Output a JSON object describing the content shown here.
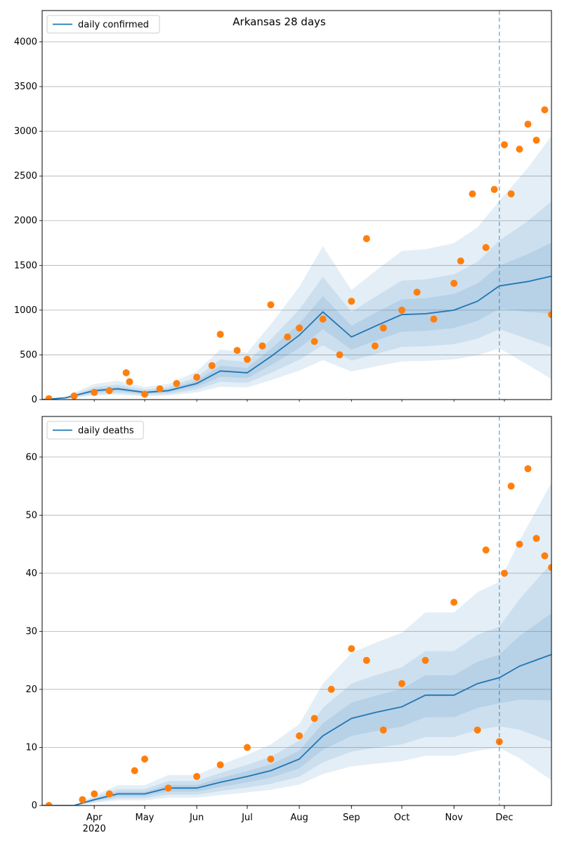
{
  "chart_data": [
    {
      "type": "line",
      "title": "Arkansas 28 days",
      "xlabel": "",
      "ylabel": "",
      "x_range": [
        "2020-03-01",
        "2020-12-29"
      ],
      "ylim": [
        0,
        4350
      ],
      "yticks": [
        0,
        500,
        1000,
        1500,
        2000,
        2500,
        3000,
        3500,
        4000
      ],
      "grid": "horizontal",
      "legend_position": "top-left",
      "forecast_start": "2020-11-28",
      "colors": {
        "line": "#1f77b4",
        "points": "#ff7f0e",
        "band": "#1f77b4"
      },
      "series": [
        {
          "name": "daily confirmed",
          "type": "line",
          "x": [
            "2020-03-01",
            "2020-03-15",
            "2020-04-01",
            "2020-04-15",
            "2020-05-01",
            "2020-05-15",
            "2020-06-01",
            "2020-06-15",
            "2020-07-01",
            "2020-07-15",
            "2020-08-01",
            "2020-08-15",
            "2020-09-01",
            "2020-09-15",
            "2020-10-01",
            "2020-10-15",
            "2020-11-01",
            "2020-11-15",
            "2020-11-28",
            "2020-12-15",
            "2020-12-29"
          ],
          "values": [
            0,
            20,
            100,
            120,
            80,
            100,
            180,
            320,
            300,
            480,
            720,
            980,
            700,
            820,
            950,
            960,
            1000,
            1100,
            1270,
            1320,
            1380
          ]
        },
        {
          "name": "",
          "type": "scatter",
          "x": [
            "2020-03-05",
            "2020-03-20",
            "2020-04-01",
            "2020-04-10",
            "2020-04-20",
            "2020-04-22",
            "2020-05-01",
            "2020-05-10",
            "2020-05-20",
            "2020-06-01",
            "2020-06-10",
            "2020-06-15",
            "2020-06-25",
            "2020-07-01",
            "2020-07-10",
            "2020-07-15",
            "2020-07-25",
            "2020-08-01",
            "2020-08-10",
            "2020-08-15",
            "2020-08-25",
            "2020-09-01",
            "2020-09-10",
            "2020-09-15",
            "2020-09-20",
            "2020-10-01",
            "2020-10-10",
            "2020-10-20",
            "2020-11-01",
            "2020-11-05",
            "2020-11-12",
            "2020-11-20",
            "2020-11-25",
            "2020-12-01",
            "2020-12-05",
            "2020-12-10",
            "2020-12-15",
            "2020-12-20",
            "2020-12-25",
            "2020-12-29"
          ],
          "values": [
            10,
            40,
            80,
            100,
            300,
            200,
            60,
            120,
            180,
            250,
            380,
            730,
            550,
            450,
            600,
            1060,
            700,
            800,
            650,
            900,
            500,
            1100,
            1800,
            600,
            800,
            1000,
            1200,
            900,
            1300,
            1550,
            2300,
            1700,
            2350,
            2850,
            2300,
            2800,
            3080,
            2900,
            3240,
            950
          ]
        }
      ]
    },
    {
      "type": "line",
      "title": "",
      "xlabel": "",
      "ylabel": "",
      "x_range": [
        "2020-03-01",
        "2020-12-29"
      ],
      "xticks": [
        "Apr",
        "May",
        "Jun",
        "Jul",
        "Aug",
        "Sep",
        "Oct",
        "Nov",
        "Dec"
      ],
      "xtick_year": "2020",
      "ylim": [
        0,
        67
      ],
      "yticks": [
        0,
        10,
        20,
        30,
        40,
        50,
        60
      ],
      "grid": "horizontal",
      "legend_position": "top-left",
      "forecast_start": "2020-11-28",
      "colors": {
        "line": "#1f77b4",
        "points": "#ff7f0e",
        "band": "#1f77b4"
      },
      "series": [
        {
          "name": "daily deaths",
          "type": "line",
          "x": [
            "2020-03-01",
            "2020-03-20",
            "2020-04-01",
            "2020-04-15",
            "2020-05-01",
            "2020-05-15",
            "2020-06-01",
            "2020-06-15",
            "2020-07-01",
            "2020-07-15",
            "2020-08-01",
            "2020-08-15",
            "2020-09-01",
            "2020-09-15",
            "2020-10-01",
            "2020-10-15",
            "2020-11-01",
            "2020-11-15",
            "2020-11-28",
            "2020-12-10",
            "2020-12-29"
          ],
          "values": [
            0,
            0,
            1,
            2,
            2,
            3,
            3,
            4,
            5,
            6,
            8,
            12,
            15,
            16,
            17,
            19,
            19,
            21,
            22,
            24,
            26
          ]
        },
        {
          "name": "",
          "type": "scatter",
          "x": [
            "2020-03-05",
            "2020-03-25",
            "2020-04-01",
            "2020-04-10",
            "2020-04-25",
            "2020-05-01",
            "2020-05-15",
            "2020-06-01",
            "2020-06-15",
            "2020-07-01",
            "2020-07-15",
            "2020-08-01",
            "2020-08-10",
            "2020-08-20",
            "2020-09-01",
            "2020-09-10",
            "2020-09-20",
            "2020-10-01",
            "2020-10-15",
            "2020-11-01",
            "2020-11-15",
            "2020-11-20",
            "2020-11-28",
            "2020-12-01",
            "2020-12-05",
            "2020-12-10",
            "2020-12-15",
            "2020-12-20",
            "2020-12-25",
            "2020-12-29"
          ],
          "values": [
            0,
            1,
            2,
            2,
            6,
            8,
            3,
            5,
            7,
            10,
            8,
            12,
            15,
            20,
            27,
            25,
            13,
            21,
            25,
            35,
            13,
            44,
            11,
            40,
            55,
            45,
            58,
            46,
            43,
            41
          ]
        }
      ]
    }
  ]
}
